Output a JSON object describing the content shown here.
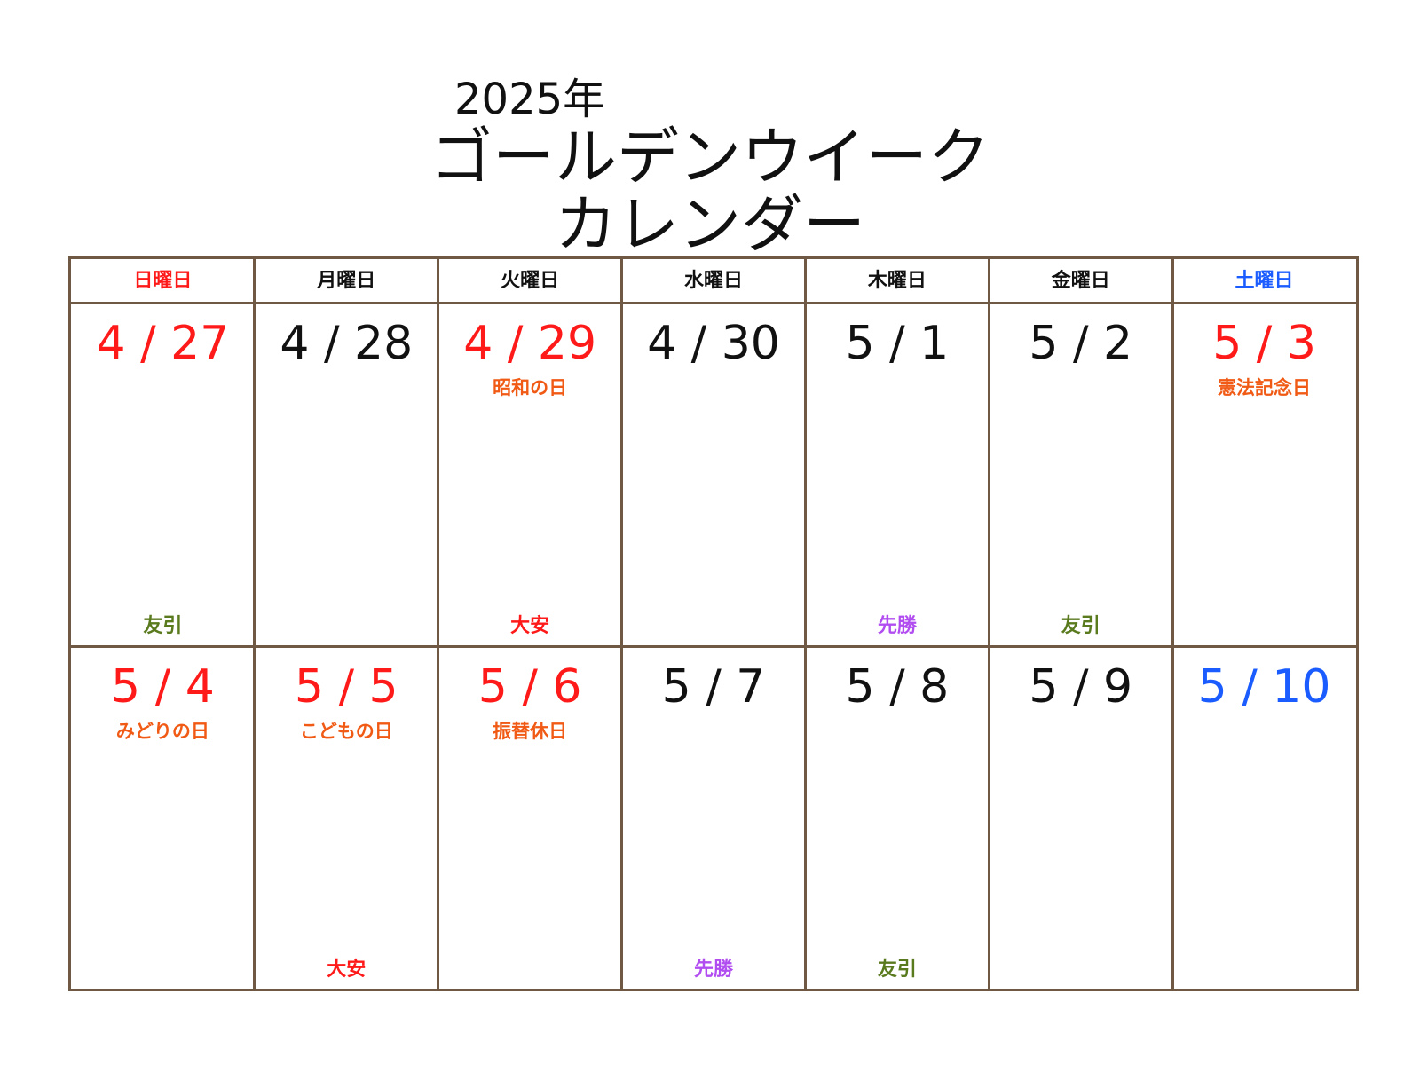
{
  "header": {
    "year": "2025年",
    "title_line1": "ゴールデンウイーク",
    "title_line2": "カレンダー"
  },
  "colors": {
    "red": "#ff1a1a",
    "blue": "#1a5cff",
    "black": "#111111",
    "orange": "#f05a14",
    "green": "#5a7a1e",
    "purple": "#b14df0",
    "border": "#6f5844"
  },
  "weekdays": [
    {
      "label": "日曜日",
      "color": "#ff1a1a"
    },
    {
      "label": "月曜日",
      "color": "#111111"
    },
    {
      "label": "火曜日",
      "color": "#111111"
    },
    {
      "label": "水曜日",
      "color": "#111111"
    },
    {
      "label": "木曜日",
      "color": "#111111"
    },
    {
      "label": "金曜日",
      "color": "#111111"
    },
    {
      "label": "土曜日",
      "color": "#1a5cff"
    }
  ],
  "weeks": [
    [
      {
        "date": "4 / 27",
        "color": "#ff1a1a",
        "holiday": "",
        "rokuyo": "友引",
        "rokuyo_color": "#5a7a1e"
      },
      {
        "date": "4 / 28",
        "color": "#111111",
        "holiday": "",
        "rokuyo": "",
        "rokuyo_color": "#111111"
      },
      {
        "date": "4 / 29",
        "color": "#ff1a1a",
        "holiday": "昭和の日",
        "rokuyo": "大安",
        "rokuyo_color": "#ff1a1a"
      },
      {
        "date": "4 / 30",
        "color": "#111111",
        "holiday": "",
        "rokuyo": "",
        "rokuyo_color": "#111111"
      },
      {
        "date": "5 / 1",
        "color": "#111111",
        "holiday": "",
        "rokuyo": "先勝",
        "rokuyo_color": "#b14df0"
      },
      {
        "date": "5 / 2",
        "color": "#111111",
        "holiday": "",
        "rokuyo": "友引",
        "rokuyo_color": "#5a7a1e"
      },
      {
        "date": "5 / 3",
        "color": "#ff1a1a",
        "holiday": "憲法記念日",
        "rokuyo": "",
        "rokuyo_color": "#111111"
      }
    ],
    [
      {
        "date": "5 / 4",
        "color": "#ff1a1a",
        "holiday": "みどりの日",
        "rokuyo": "",
        "rokuyo_color": "#111111"
      },
      {
        "date": "5 / 5",
        "color": "#ff1a1a",
        "holiday": "こどもの日",
        "rokuyo": "大安",
        "rokuyo_color": "#ff1a1a"
      },
      {
        "date": "5 / 6",
        "color": "#ff1a1a",
        "holiday": "振替休日",
        "rokuyo": "",
        "rokuyo_color": "#111111"
      },
      {
        "date": "5 / 7",
        "color": "#111111",
        "holiday": "",
        "rokuyo": "先勝",
        "rokuyo_color": "#b14df0"
      },
      {
        "date": "5 / 8",
        "color": "#111111",
        "holiday": "",
        "rokuyo": "友引",
        "rokuyo_color": "#5a7a1e"
      },
      {
        "date": "5 / 9",
        "color": "#111111",
        "holiday": "",
        "rokuyo": "",
        "rokuyo_color": "#111111"
      },
      {
        "date": "5 / 10",
        "color": "#1a5cff",
        "holiday": "",
        "rokuyo": "",
        "rokuyo_color": "#111111"
      }
    ]
  ]
}
